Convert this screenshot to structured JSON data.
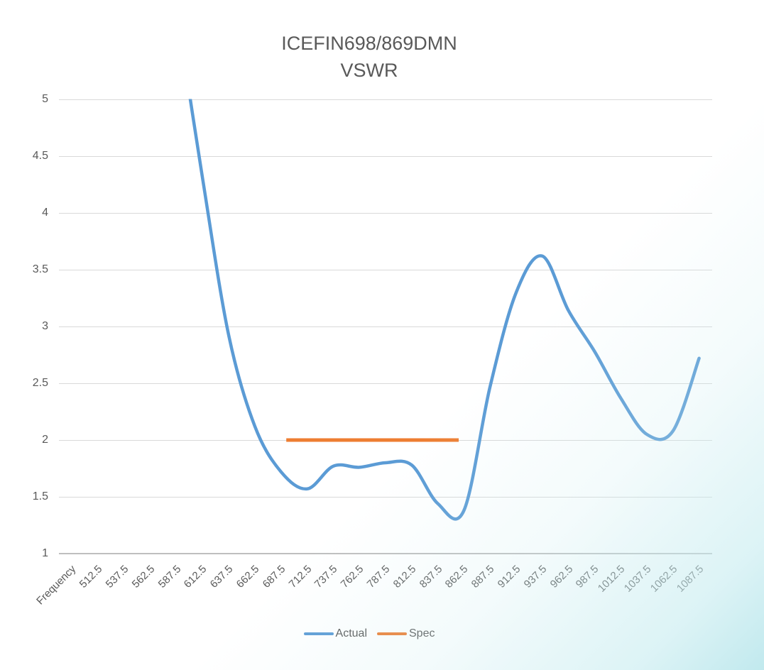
{
  "page": {
    "background": "#ffffff",
    "watermark_color": "#c9edf0",
    "watermark_position": "bottom-right-gradient"
  },
  "chart_data": {
    "type": "line",
    "title": "ICEFIN698/869DMN",
    "subtitle": "VSWR",
    "grid": true,
    "legend_position": "bottom",
    "ylim": [
      1,
      5
    ],
    "ytick_step": 0.5,
    "y_ticks": [
      "5",
      "4.5",
      "4",
      "3.5",
      "3",
      "2.5",
      "2",
      "1.5",
      "1"
    ],
    "x_axis_label_rotation_deg": 45,
    "categories": [
      "Frequency",
      "512.5",
      "537.5",
      "562.5",
      "587.5",
      "612.5",
      "637.5",
      "662.5",
      "687.5",
      "712.5",
      "737.5",
      "762.5",
      "787.5",
      "812.5",
      "837.5",
      "862.5",
      "887.5",
      "912.5",
      "937.5",
      "962.5",
      "987.5",
      "1012.5",
      "1037.5",
      "1062.5",
      "1087.5"
    ],
    "series": [
      {
        "name": "Actual",
        "color": "#5B9BD5",
        "clipped_above": 5,
        "values": [
          null,
          null,
          null,
          null,
          5.8,
          4.3,
          2.92,
          2.12,
          1.72,
          1.57,
          1.77,
          1.76,
          1.8,
          1.78,
          1.44,
          1.38,
          2.47,
          3.3,
          3.62,
          3.14,
          2.78,
          2.37,
          2.05,
          2.08,
          2.72
        ]
      },
      {
        "name": "Spec",
        "color": "#ED7D31",
        "type": "horizontal_segment",
        "value": 2,
        "start_category_index": 8.2,
        "end_category_index": 14.8
      }
    ]
  }
}
